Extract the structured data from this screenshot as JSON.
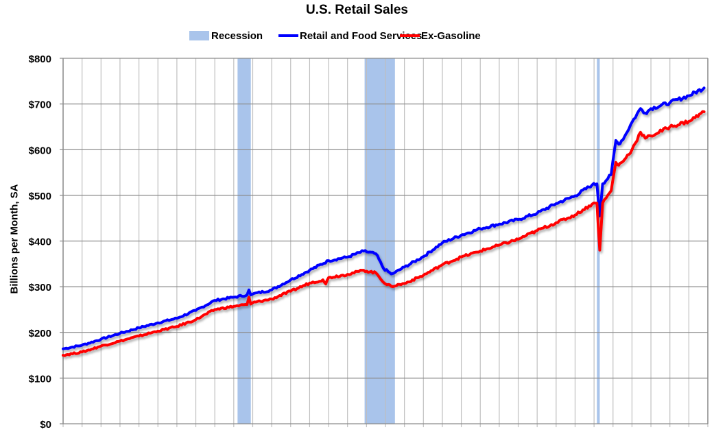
{
  "chart_data": {
    "type": "line",
    "title": "U.S. Retail Sales",
    "xlabel": "",
    "ylabel": "Billions per Month, SA",
    "ylim": [
      0,
      800
    ],
    "xlim": [
      1992.0,
      2026.0
    ],
    "y_ticks": [
      "$0",
      "$100",
      "$200",
      "$300",
      "$400",
      "$500",
      "$600",
      "$700",
      "$800"
    ],
    "y_tick_values": [
      0,
      100,
      200,
      300,
      400,
      500,
      600,
      700,
      800
    ],
    "grid": true,
    "legend_position": "top",
    "legend": [
      "Recession",
      "Retail and Food Services",
      "Ex-Gasoline"
    ],
    "recessions": [
      {
        "start": 2001.2,
        "end": 2001.9
      },
      {
        "start": 2007.9,
        "end": 2009.5
      },
      {
        "start": 2020.15,
        "end": 2020.3
      }
    ],
    "series": [
      {
        "name": "Retail and Food Services",
        "color": "#0000FF",
        "points": [
          [
            1992.0,
            164
          ],
          [
            1993.0,
            172
          ],
          [
            1994.0,
            185
          ],
          [
            1995.0,
            198
          ],
          [
            1996.0,
            210
          ],
          [
            1997.0,
            221
          ],
          [
            1998.0,
            231
          ],
          [
            1999.0,
            248
          ],
          [
            2000.0,
            270
          ],
          [
            2001.0,
            277
          ],
          [
            2001.7,
            282
          ],
          [
            2001.8,
            293
          ],
          [
            2001.9,
            282
          ],
          [
            2002.0,
            284
          ],
          [
            2003.0,
            293
          ],
          [
            2004.0,
            315
          ],
          [
            2005.0,
            336
          ],
          [
            2006.0,
            357
          ],
          [
            2007.0,
            365
          ],
          [
            2007.85,
            378
          ],
          [
            2008.5,
            372
          ],
          [
            2008.9,
            340
          ],
          [
            2009.3,
            328
          ],
          [
            2009.5,
            331
          ],
          [
            2010.0,
            343
          ],
          [
            2011.0,
            366
          ],
          [
            2012.0,
            396
          ],
          [
            2013.0,
            413
          ],
          [
            2014.0,
            427
          ],
          [
            2015.0,
            437
          ],
          [
            2016.0,
            447
          ],
          [
            2017.0,
            461
          ],
          [
            2018.0,
            482
          ],
          [
            2019.0,
            499
          ],
          [
            2019.9,
            523
          ],
          [
            2020.15,
            525
          ],
          [
            2020.3,
            455
          ],
          [
            2020.45,
            525
          ],
          [
            2020.9,
            545
          ],
          [
            2021.15,
            620
          ],
          [
            2021.3,
            612
          ],
          [
            2021.6,
            628
          ],
          [
            2022.0,
            660
          ],
          [
            2022.45,
            690
          ],
          [
            2022.7,
            680
          ],
          [
            2023.0,
            690
          ],
          [
            2024.0,
            703
          ],
          [
            2025.0,
            718
          ],
          [
            2025.8,
            735
          ]
        ]
      },
      {
        "name": "Ex-Gasoline",
        "color": "#FF0000",
        "points": [
          [
            1992.0,
            150
          ],
          [
            1993.0,
            157
          ],
          [
            1994.0,
            170
          ],
          [
            1995.0,
            181
          ],
          [
            1996.0,
            192
          ],
          [
            1997.0,
            203
          ],
          [
            1998.0,
            213
          ],
          [
            1999.0,
            228
          ],
          [
            2000.0,
            250
          ],
          [
            2001.0,
            257
          ],
          [
            2001.7,
            261
          ],
          [
            2001.8,
            277
          ],
          [
            2001.9,
            262
          ],
          [
            2002.0,
            265
          ],
          [
            2003.0,
            273
          ],
          [
            2004.0,
            290
          ],
          [
            2005.0,
            308
          ],
          [
            2005.7,
            315
          ],
          [
            2005.85,
            306
          ],
          [
            2006.0,
            320
          ],
          [
            2007.0,
            327
          ],
          [
            2007.85,
            336
          ],
          [
            2008.5,
            330
          ],
          [
            2009.0,
            306
          ],
          [
            2009.3,
            301
          ],
          [
            2010.0,
            307
          ],
          [
            2011.0,
            325
          ],
          [
            2012.0,
            348
          ],
          [
            2013.0,
            365
          ],
          [
            2014.0,
            378
          ],
          [
            2015.0,
            391
          ],
          [
            2016.0,
            404
          ],
          [
            2017.0,
            423
          ],
          [
            2018.0,
            440
          ],
          [
            2019.0,
            457
          ],
          [
            2019.9,
            481
          ],
          [
            2020.15,
            483
          ],
          [
            2020.3,
            380
          ],
          [
            2020.45,
            483
          ],
          [
            2020.9,
            510
          ],
          [
            2021.15,
            572
          ],
          [
            2021.3,
            566
          ],
          [
            2021.6,
            578
          ],
          [
            2022.0,
            600
          ],
          [
            2022.45,
            638
          ],
          [
            2022.7,
            625
          ],
          [
            2023.0,
            630
          ],
          [
            2024.0,
            650
          ],
          [
            2025.0,
            662
          ],
          [
            2025.8,
            683
          ]
        ]
      }
    ]
  }
}
